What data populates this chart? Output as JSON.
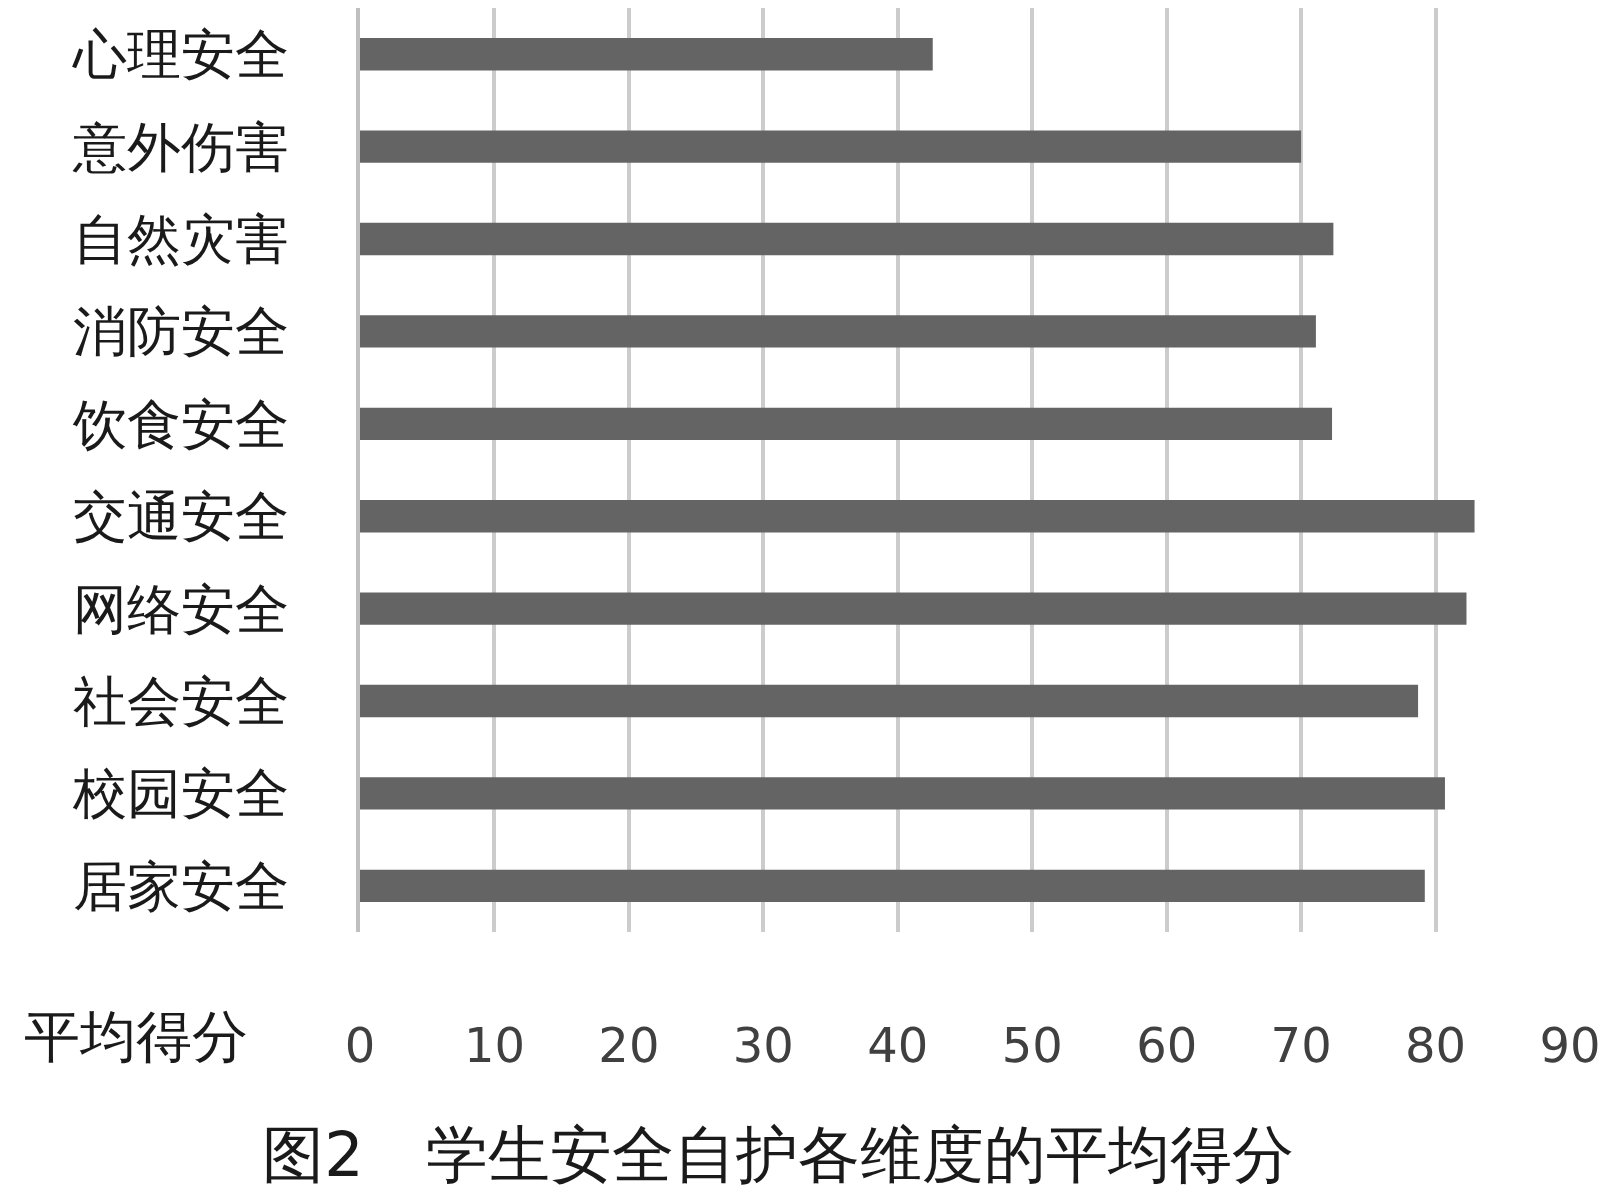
{
  "chart_data": {
    "type": "bar",
    "orientation": "horizontal",
    "title": "图2　学生安全自护各维度的平均得分",
    "xlabel": "平均得分",
    "categories": [
      "心理安全",
      "意外伤害",
      "自然灾害",
      "消防安全",
      "饮食安全",
      "交通安全",
      "网络安全",
      "社会安全",
      "校园安全",
      "居家安全"
    ],
    "values": [
      42.6,
      70.0,
      72.4,
      71.1,
      72.3,
      82.9,
      82.3,
      78.7,
      80.7,
      79.2
    ],
    "color": "#646464",
    "xlim": [
      0,
      90
    ],
    "xticks": [
      0,
      10,
      20,
      30,
      40,
      50,
      60,
      70,
      80,
      90
    ],
    "grid": "x"
  }
}
